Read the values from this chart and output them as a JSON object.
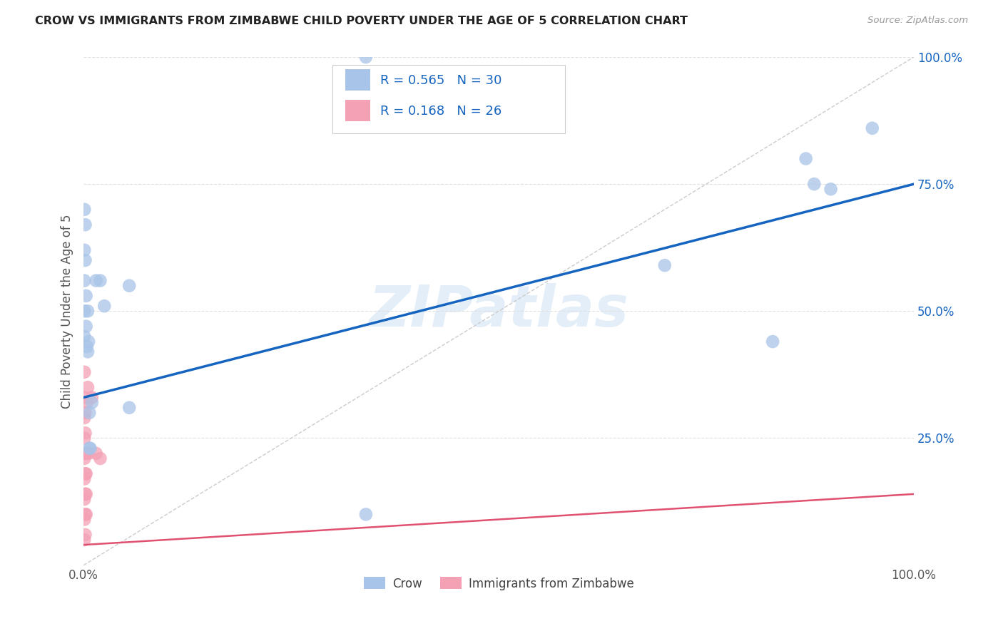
{
  "title": "CROW VS IMMIGRANTS FROM ZIMBABWE CHILD POVERTY UNDER THE AGE OF 5 CORRELATION CHART",
  "source": "Source: ZipAtlas.com",
  "ylabel": "Child Poverty Under the Age of 5",
  "watermark": "ZIPatlas",
  "crow_points": [
    [
      0.001,
      0.7
    ],
    [
      0.001,
      0.62
    ],
    [
      0.001,
      0.56
    ],
    [
      0.001,
      0.5
    ],
    [
      0.001,
      0.45
    ],
    [
      0.002,
      0.67
    ],
    [
      0.002,
      0.6
    ],
    [
      0.003,
      0.53
    ],
    [
      0.003,
      0.47
    ],
    [
      0.004,
      0.43
    ],
    [
      0.005,
      0.5
    ],
    [
      0.005,
      0.42
    ],
    [
      0.006,
      0.44
    ],
    [
      0.007,
      0.3
    ],
    [
      0.007,
      0.23
    ],
    [
      0.008,
      0.23
    ],
    [
      0.01,
      0.32
    ],
    [
      0.015,
      0.56
    ],
    [
      0.02,
      0.56
    ],
    [
      0.025,
      0.51
    ],
    [
      0.055,
      0.55
    ],
    [
      0.055,
      0.31
    ],
    [
      0.34,
      1.0
    ],
    [
      0.34,
      0.1
    ],
    [
      0.7,
      0.59
    ],
    [
      0.83,
      0.44
    ],
    [
      0.87,
      0.8
    ],
    [
      0.88,
      0.75
    ],
    [
      0.9,
      0.74
    ],
    [
      0.95,
      0.86
    ]
  ],
  "zimb_points": [
    [
      0.001,
      0.38
    ],
    [
      0.001,
      0.33
    ],
    [
      0.001,
      0.29
    ],
    [
      0.001,
      0.25
    ],
    [
      0.001,
      0.21
    ],
    [
      0.001,
      0.17
    ],
    [
      0.001,
      0.13
    ],
    [
      0.001,
      0.09
    ],
    [
      0.001,
      0.05
    ],
    [
      0.002,
      0.3
    ],
    [
      0.002,
      0.26
    ],
    [
      0.002,
      0.22
    ],
    [
      0.002,
      0.18
    ],
    [
      0.002,
      0.14
    ],
    [
      0.002,
      0.1
    ],
    [
      0.002,
      0.06
    ],
    [
      0.003,
      0.22
    ],
    [
      0.003,
      0.18
    ],
    [
      0.003,
      0.14
    ],
    [
      0.003,
      0.1
    ],
    [
      0.004,
      0.32
    ],
    [
      0.005,
      0.35
    ],
    [
      0.006,
      0.22
    ],
    [
      0.01,
      0.33
    ],
    [
      0.015,
      0.22
    ],
    [
      0.02,
      0.21
    ]
  ],
  "crow_color": "#a8c4e8",
  "zimb_color": "#f4a0b5",
  "crow_line_color": "#1565c0",
  "zimb_line_color": "#e05070",
  "dashed_line_color": "#cccccc",
  "crow_R": "0.565",
  "crow_N": "30",
  "zimb_R": "0.168",
  "zimb_N": "26",
  "crow_intercept": 0.33,
  "crow_slope": 0.42,
  "zimb_intercept": 0.04,
  "zimb_slope": 0.1,
  "xlim": [
    0,
    1
  ],
  "ylim": [
    0,
    1
  ],
  "yticks": [
    0.0,
    0.25,
    0.5,
    0.75,
    1.0
  ],
  "ytick_labels": [
    "",
    "25.0%",
    "50.0%",
    "75.0%",
    "100.0%"
  ],
  "xticks": [
    0.0,
    0.25,
    0.5,
    0.75,
    1.0
  ],
  "xtick_labels": [
    "0.0%",
    "",
    "",
    "",
    "100.0%"
  ],
  "legend_crow_label": "Crow",
  "legend_zimb_label": "Immigrants from Zimbabwe",
  "background_color": "#ffffff",
  "grid_color": "#e0e0e0"
}
